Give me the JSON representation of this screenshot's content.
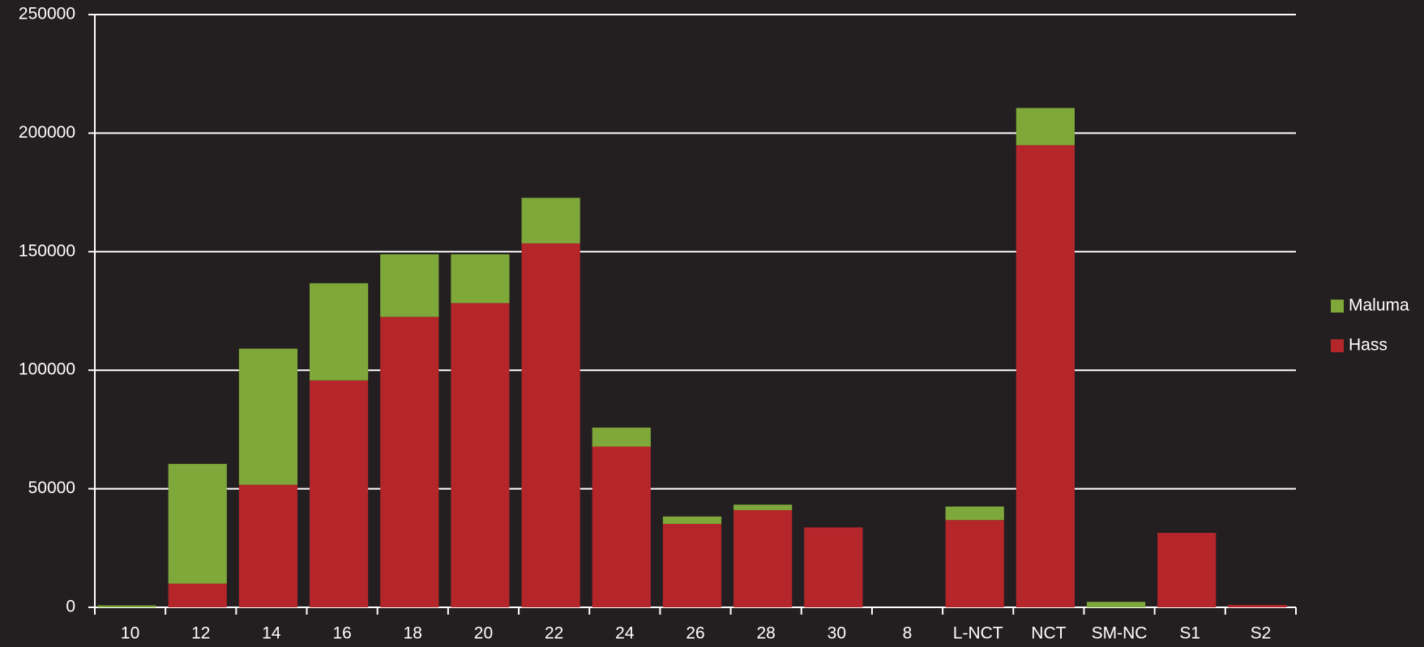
{
  "chart_data": {
    "type": "stacked_bar",
    "categories": [
      "10",
      "12",
      "14",
      "16",
      "18",
      "20",
      "22",
      "24",
      "26",
      "28",
      "30",
      "8",
      "L-NCT",
      "NCT",
      "SM-NC",
      "S1",
      "S2"
    ],
    "series": [
      {
        "name": "Hass",
        "color": "#b5262b",
        "values": [
          0,
          10000,
          51700,
          95700,
          122500,
          128300,
          153500,
          67800,
          35200,
          41000,
          33700,
          0,
          36800,
          194900,
          0,
          31400,
          1000
        ]
      },
      {
        "name": "Maluma",
        "color": "#7fa83a",
        "values": [
          800,
          50500,
          57400,
          41000,
          26400,
          20600,
          19200,
          8000,
          3100,
          2300,
          0,
          0,
          5700,
          15700,
          2300,
          0,
          0
        ]
      }
    ],
    "ylim": [
      0,
      250000
    ],
    "yticks": [
      0,
      50000,
      100000,
      150000,
      200000,
      250000
    ],
    "grid": true,
    "legend": "right"
  }
}
